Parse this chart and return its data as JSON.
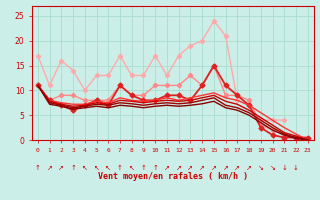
{
  "background_color": "#cceee8",
  "grid_color": "#aaddcc",
  "xlabel": "Vent moyen/en rafales ( km/h )",
  "xlabel_color": "#cc0000",
  "ylabel_ticks": [
    0,
    5,
    10,
    15,
    20,
    25
  ],
  "xlim": [
    -0.5,
    23.5
  ],
  "ylim": [
    0,
    27
  ],
  "x": [
    0,
    1,
    2,
    3,
    4,
    5,
    6,
    7,
    8,
    9,
    10,
    11,
    12,
    13,
    14,
    15,
    16,
    17,
    18,
    19,
    20,
    21,
    22,
    23
  ],
  "series": [
    {
      "color": "#ffaaaa",
      "linewidth": 1.0,
      "marker": "D",
      "markersize": 2.2,
      "values": [
        17,
        11,
        16,
        14,
        10,
        13,
        13,
        17,
        13,
        13,
        17,
        13,
        17,
        19,
        20,
        24,
        21,
        8,
        7,
        4,
        4,
        4,
        null,
        null
      ]
    },
    {
      "color": "#ff8888",
      "linewidth": 1.0,
      "marker": "D",
      "markersize": 2.2,
      "values": [
        11,
        8,
        9,
        9,
        8,
        8,
        8,
        11,
        9,
        9,
        11,
        11,
        11,
        13,
        11,
        15,
        9,
        9,
        8,
        3,
        2,
        1,
        0.5,
        null
      ]
    },
    {
      "color": "#dd2222",
      "linewidth": 1.3,
      "marker": "D",
      "markersize": 2.5,
      "values": [
        11,
        8,
        7,
        6,
        7,
        8,
        7,
        11,
        9,
        8,
        8,
        9,
        9,
        8,
        11,
        15,
        11,
        9,
        7,
        2.5,
        1,
        0.5,
        0.5,
        0.5
      ]
    },
    {
      "color": "#ff3333",
      "linewidth": 1.0,
      "marker": null,
      "markersize": 0,
      "values": [
        11,
        8,
        7.5,
        7.2,
        7.2,
        7.8,
        7.5,
        8.5,
        8.0,
        7.8,
        8.0,
        8.5,
        8.0,
        8.5,
        9.0,
        9.5,
        8.5,
        8.0,
        7.0,
        5.5,
        4.0,
        2.5,
        1.2,
        0
      ]
    },
    {
      "color": "#cc0000",
      "linewidth": 1.0,
      "marker": null,
      "markersize": 0,
      "values": [
        11,
        7.8,
        7.2,
        6.8,
        7.0,
        7.5,
        7.2,
        8.0,
        7.8,
        7.5,
        7.8,
        8.0,
        7.8,
        8.0,
        8.5,
        9.0,
        7.8,
        7.2,
        6.0,
        4.5,
        3.0,
        1.5,
        0.8,
        0
      ]
    },
    {
      "color": "#990000",
      "linewidth": 1.0,
      "marker": null,
      "markersize": 0,
      "values": [
        11,
        7.5,
        7.0,
        6.5,
        6.8,
        7.2,
        7.0,
        7.5,
        7.3,
        7.0,
        7.3,
        7.5,
        7.3,
        7.5,
        8.0,
        8.5,
        7.0,
        6.5,
        5.5,
        4.0,
        2.5,
        1.2,
        0.5,
        0
      ]
    },
    {
      "color": "#880000",
      "linewidth": 1.0,
      "marker": null,
      "markersize": 0,
      "values": [
        11,
        7.2,
        6.8,
        6.2,
        6.5,
        6.8,
        6.5,
        7.0,
        6.8,
        6.5,
        6.8,
        7.0,
        6.8,
        7.0,
        7.3,
        7.8,
        6.5,
        6.0,
        5.0,
        3.5,
        2.0,
        1.0,
        0.3,
        0
      ]
    }
  ],
  "xtick_labels": [
    "0",
    "1",
    "2",
    "3",
    "4",
    "5",
    "6",
    "7",
    "8",
    "9",
    "10",
    "11",
    "12",
    "13",
    "14",
    "15",
    "16",
    "17",
    "18",
    "19",
    "20",
    "21",
    "22",
    "23"
  ],
  "arrow_chars": [
    "↑",
    "↗",
    "↗",
    "↑",
    "↖",
    "↖",
    "↖",
    "↑",
    "↖",
    "↑",
    "↑",
    "↗",
    "↗",
    "↗",
    "↗",
    "↗",
    "↗",
    "↗",
    "↗",
    "↘",
    "↘",
    "↓",
    "↓"
  ]
}
